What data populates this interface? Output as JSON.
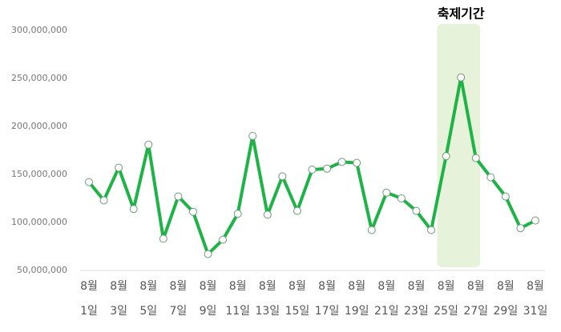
{
  "chart_data": {
    "type": "line",
    "categories": [
      "8월 1일",
      null,
      "8월 3일",
      null,
      "8월 5일",
      null,
      "8월 7일",
      null,
      "8월 9일",
      null,
      "8월 11일",
      null,
      "8월 13일",
      null,
      "8월 15일",
      null,
      "8월 17일",
      null,
      "8월 19일",
      null,
      "8월 21일",
      null,
      "8월 23일",
      null,
      "8월 25일",
      null,
      "8월 27일",
      null,
      "8월 29일",
      null,
      "8월 31일"
    ],
    "series": [
      {
        "color": "#1fb347",
        "values": [
          142000000,
          123000000,
          157000000,
          114000000,
          181000000,
          83000000,
          127000000,
          111000000,
          67000000,
          82000000,
          109000000,
          190000000,
          108000000,
          148000000,
          112000000,
          155000000,
          156000000,
          163000000,
          162000000,
          92000000,
          131000000,
          125000000,
          112000000,
          92000000,
          169000000,
          251000000,
          167000000,
          147000000,
          127000000,
          94000000,
          102000000
        ]
      }
    ],
    "ylim": [
      50000000,
      300000000
    ],
    "yticks": [
      {
        "value": 50000000,
        "label": "50,000,000"
      },
      {
        "value": 100000000,
        "label": "100,000,000"
      },
      {
        "value": 150000000,
        "label": "150,000,000"
      },
      {
        "value": 200000000,
        "label": "200,000,000"
      },
      {
        "value": 250000000,
        "label": "250,000,000"
      },
      {
        "value": 300000000,
        "label": "300,000,000"
      }
    ],
    "highlight": {
      "text": "축제기간",
      "categories": [
        "8월 25일",
        "8월 27일"
      ],
      "color": "#e6f3da"
    }
  }
}
